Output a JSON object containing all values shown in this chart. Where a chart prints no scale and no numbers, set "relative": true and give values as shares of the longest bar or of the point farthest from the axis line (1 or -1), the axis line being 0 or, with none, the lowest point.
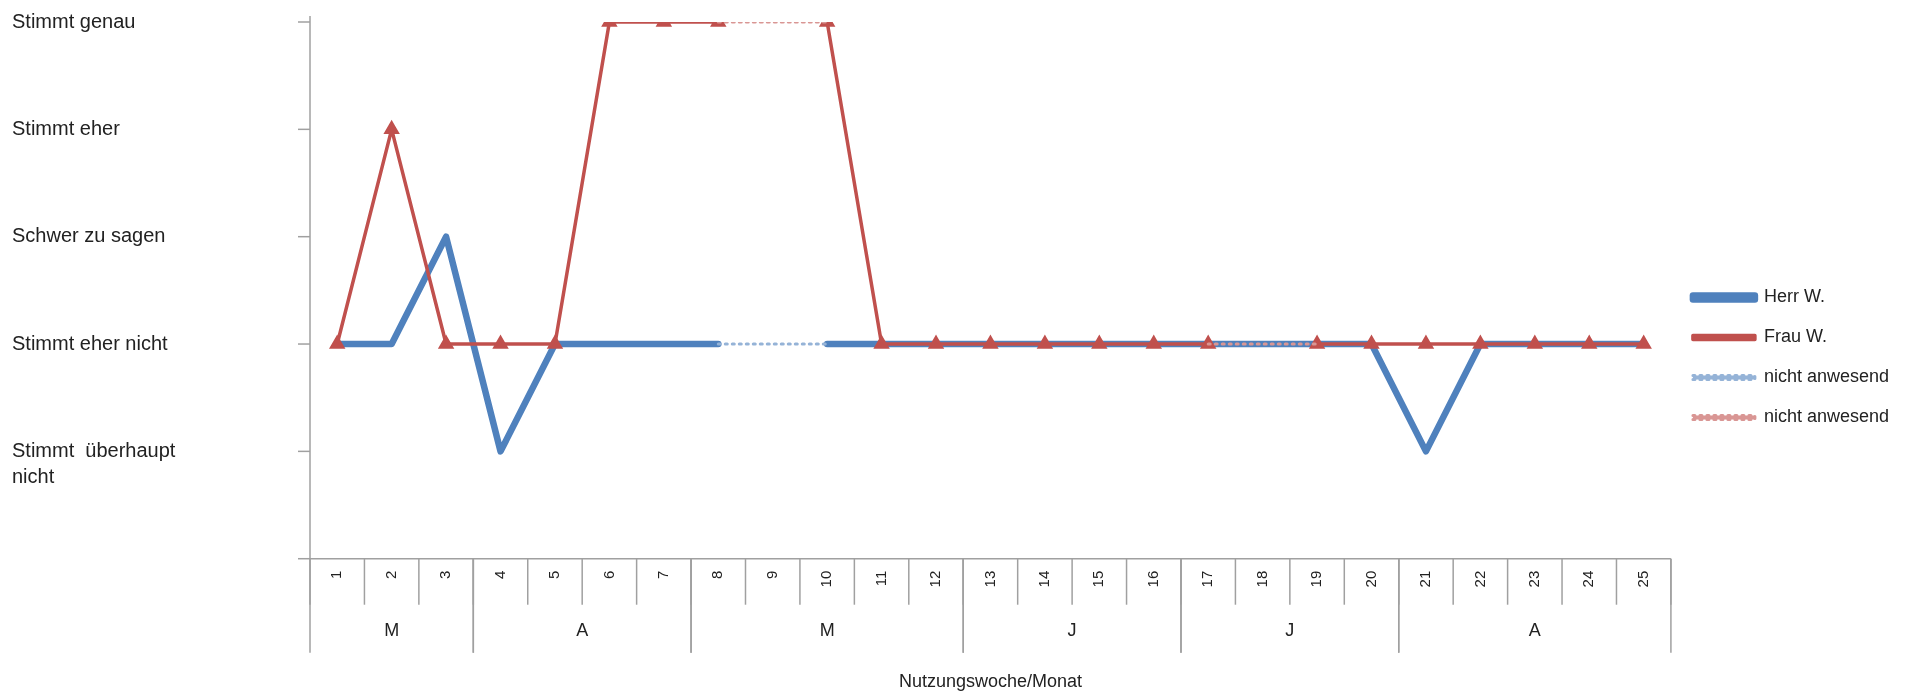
{
  "chart_data": {
    "type": "line",
    "xlabel": "Nutzungswoche/Monat",
    "relative": true,
    "categories": [
      "1",
      "2",
      "3",
      "4",
      "5",
      "6",
      "7",
      "8",
      "9",
      "10",
      "11",
      "12",
      "13",
      "14",
      "15",
      "16",
      "17",
      "18",
      "19",
      "20",
      "21",
      "22",
      "23",
      "24",
      "25"
    ],
    "series": [
      {
        "name": "Herr W.",
        "color": "#4f81bd",
        "marker": "none",
        "line_style": "solid",
        "values": [
          0.4,
          0.4,
          0.6,
          0.2,
          0.4,
          0.4,
          0.4,
          0.4,
          null,
          0.4,
          0.4,
          0.4,
          0.4,
          0.4,
          0.4,
          0.4,
          0.4,
          0.4,
          0.4,
          0.4,
          0.2,
          0.4,
          0.4,
          0.4,
          0.4
        ]
      },
      {
        "name": "Frau W.",
        "color": "#c0504d",
        "marker": "triangle",
        "line_style": "solid",
        "values": [
          0.4,
          0.8,
          0.4,
          0.4,
          0.4,
          1,
          1,
          1,
          null,
          1,
          0.4,
          0.4,
          0.4,
          0.4,
          0.4,
          0.4,
          0.4,
          null,
          0.4,
          0.4,
          0.4,
          0.4,
          0.4,
          0.4,
          0.4
        ]
      },
      {
        "name": "nicht anwesend",
        "color": "#95b3d7",
        "marker": "none",
        "line_style": "dotted",
        "values": [
          null,
          null,
          null,
          null,
          null,
          null,
          null,
          0.4,
          0.4,
          0.4,
          null,
          null,
          null,
          null,
          null,
          null,
          null,
          null,
          null,
          null,
          null,
          null,
          null,
          null,
          null
        ]
      },
      {
        "name": "nicht anwesend",
        "color": "#d99694",
        "marker": "none",
        "line_style": "dotted",
        "values": [
          null,
          null,
          null,
          null,
          null,
          null,
          null,
          1,
          1,
          1,
          null,
          null,
          null,
          null,
          null,
          null,
          0.4,
          0.4,
          0.4,
          null,
          null,
          null,
          null,
          null,
          null
        ]
      }
    ],
    "annotations": [
      "M",
      "A",
      "M",
      "J",
      "J",
      "A",
      "Stimmt genau",
      "Stimmt eher",
      "Schwer zu sagen",
      "Stimmt eher nicht",
      "Stimmt  überhaupt nicht"
    ],
    "grid": false,
    "legend": "right"
  }
}
